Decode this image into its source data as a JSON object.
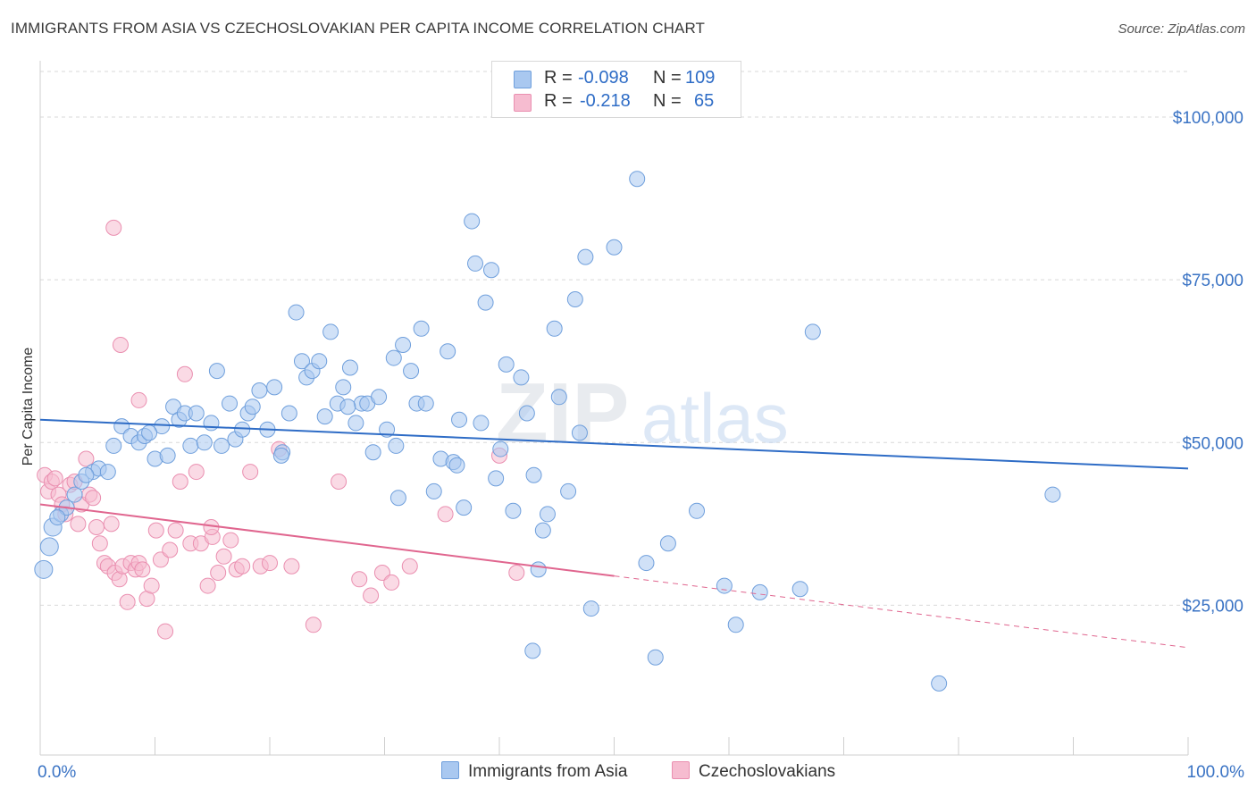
{
  "header": {
    "title": "IMMIGRANTS FROM ASIA VS CZECHOSLOVAKIAN PER CAPITA INCOME CORRELATION CHART",
    "source": "Source: ZipAtlas.com"
  },
  "watermark": {
    "zip": "ZIP",
    "atlas": "atlas"
  },
  "legend": {
    "rows": [
      {
        "r_label": "R =",
        "r_value": "-0.098",
        "n_label": "N =",
        "n_value": "109"
      },
      {
        "r_label": "R =",
        "r_value": "-0.218",
        "n_label": "N =",
        "n_value": "65"
      }
    ],
    "bottom": [
      "Immigrants from Asia",
      "Czechoslovakians"
    ]
  },
  "colors": {
    "blue_fill": "#a9c8f0",
    "blue_stroke": "#6f9fdc",
    "blue_line": "#2e6cc6",
    "pink_fill": "#f6bcd0",
    "pink_stroke": "#ea8fb0",
    "pink_line": "#e0668f",
    "grid": "#d9d9d9",
    "tick_label": "#3a73c4"
  },
  "chart_data": {
    "type": "scatter",
    "title": "IMMIGRANTS FROM ASIA VS CZECHOSLOVAKIAN PER CAPITA INCOME CORRELATION CHART",
    "xlabel": "",
    "ylabel": "Per Capita Income",
    "xlim": [
      0,
      100
    ],
    "ylim": [
      2000,
      107000
    ],
    "x_tick_labels": [
      "0.0%",
      "100.0%"
    ],
    "y_ticks": [
      25000,
      50000,
      75000,
      100000
    ],
    "y_tick_labels": [
      "$25,000",
      "$50,000",
      "$75,000",
      "$100,000"
    ],
    "grid": "horizontal dashed",
    "legend_position": "top-center",
    "series": [
      {
        "name": "Immigrants from Asia",
        "R": -0.098,
        "N": 109,
        "trend": {
          "x": [
            0,
            100
          ],
          "y": [
            53500,
            46000
          ]
        },
        "points": [
          [
            0.3,
            30500
          ],
          [
            0.8,
            34000
          ],
          [
            1.1,
            37000
          ],
          [
            1.8,
            39000
          ],
          [
            2.3,
            40000
          ],
          [
            3.0,
            42000
          ],
          [
            3.6,
            44000
          ],
          [
            4.6,
            45500
          ],
          [
            5.1,
            46000
          ],
          [
            5.9,
            45500
          ],
          [
            6.4,
            49500
          ],
          [
            7.1,
            52500
          ],
          [
            7.9,
            51000
          ],
          [
            8.6,
            50000
          ],
          [
            9.1,
            51000
          ],
          [
            10.0,
            47500
          ],
          [
            10.6,
            52500
          ],
          [
            11.1,
            48000
          ],
          [
            11.6,
            55500
          ],
          [
            12.1,
            53500
          ],
          [
            12.6,
            54500
          ],
          [
            13.1,
            49500
          ],
          [
            13.6,
            54500
          ],
          [
            14.3,
            50000
          ],
          [
            14.9,
            53000
          ],
          [
            15.4,
            61000
          ],
          [
            15.8,
            49500
          ],
          [
            16.5,
            56000
          ],
          [
            17.0,
            50500
          ],
          [
            17.6,
            52000
          ],
          [
            18.1,
            54500
          ],
          [
            18.5,
            55500
          ],
          [
            19.1,
            58000
          ],
          [
            19.8,
            52000
          ],
          [
            20.4,
            58500
          ],
          [
            21.1,
            48500
          ],
          [
            21.7,
            54500
          ],
          [
            22.3,
            70000
          ],
          [
            22.8,
            62500
          ],
          [
            23.2,
            60000
          ],
          [
            23.7,
            61000
          ],
          [
            24.3,
            62500
          ],
          [
            24.8,
            54000
          ],
          [
            25.3,
            67000
          ],
          [
            25.9,
            56000
          ],
          [
            26.4,
            58500
          ],
          [
            27.0,
            61500
          ],
          [
            27.5,
            53000
          ],
          [
            28.0,
            56000
          ],
          [
            28.5,
            56000
          ],
          [
            29.0,
            48500
          ],
          [
            29.5,
            57000
          ],
          [
            30.2,
            52000
          ],
          [
            30.8,
            63000
          ],
          [
            31.2,
            41500
          ],
          [
            31.6,
            65000
          ],
          [
            32.3,
            61000
          ],
          [
            32.8,
            56000
          ],
          [
            33.2,
            67500
          ],
          [
            33.6,
            56000
          ],
          [
            34.3,
            42500
          ],
          [
            34.9,
            47500
          ],
          [
            35.5,
            64000
          ],
          [
            36.0,
            47000
          ],
          [
            36.5,
            53500
          ],
          [
            36.9,
            40000
          ],
          [
            37.6,
            84000
          ],
          [
            37.9,
            77500
          ],
          [
            38.4,
            53000
          ],
          [
            38.8,
            71500
          ],
          [
            39.3,
            76500
          ],
          [
            39.7,
            44500
          ],
          [
            40.1,
            49000
          ],
          [
            40.6,
            62000
          ],
          [
            41.2,
            39500
          ],
          [
            41.9,
            60000
          ],
          [
            42.4,
            54500
          ],
          [
            42.9,
            18000
          ],
          [
            43.4,
            30500
          ],
          [
            43.8,
            36500
          ],
          [
            44.2,
            39000
          ],
          [
            44.8,
            67500
          ],
          [
            45.2,
            57000
          ],
          [
            46.0,
            42500
          ],
          [
            46.6,
            72000
          ],
          [
            47.0,
            51500
          ],
          [
            47.5,
            78500
          ],
          [
            48.0,
            24500
          ],
          [
            50.0,
            80000
          ],
          [
            52.0,
            90500
          ],
          [
            52.8,
            31500
          ],
          [
            53.6,
            17000
          ],
          [
            54.7,
            34500
          ],
          [
            57.2,
            39500
          ],
          [
            59.6,
            28000
          ],
          [
            60.6,
            22000
          ],
          [
            62.7,
            27000
          ],
          [
            66.2,
            27500
          ],
          [
            67.3,
            67000
          ],
          [
            78.3,
            13000
          ],
          [
            88.2,
            42000
          ],
          [
            1.5,
            38500
          ],
          [
            4.0,
            45000
          ],
          [
            9.5,
            51500
          ],
          [
            26.8,
            55500
          ],
          [
            31.0,
            49500
          ],
          [
            36.3,
            46500
          ],
          [
            43.0,
            45000
          ],
          [
            21.0,
            48000
          ]
        ]
      },
      {
        "name": "Czechoslovakians",
        "R": -0.218,
        "N": 65,
        "trend": {
          "x": [
            0,
            50
          ],
          "y": [
            40500,
            29500
          ]
        },
        "trend_dashed": {
          "x": [
            50,
            100
          ],
          "y": [
            29500,
            18500
          ]
        },
        "points": [
          [
            0.4,
            45000
          ],
          [
            0.7,
            42500
          ],
          [
            1.0,
            44000
          ],
          [
            1.3,
            44500
          ],
          [
            1.6,
            42000
          ],
          [
            1.9,
            40500
          ],
          [
            2.2,
            39000
          ],
          [
            2.6,
            43500
          ],
          [
            3.0,
            44000
          ],
          [
            3.3,
            37500
          ],
          [
            3.6,
            40500
          ],
          [
            4.0,
            47500
          ],
          [
            4.3,
            42000
          ],
          [
            4.6,
            41500
          ],
          [
            4.9,
            37000
          ],
          [
            5.2,
            34500
          ],
          [
            5.6,
            31500
          ],
          [
            5.9,
            31000
          ],
          [
            6.2,
            37500
          ],
          [
            6.5,
            30000
          ],
          [
            6.9,
            29000
          ],
          [
            7.2,
            31000
          ],
          [
            7.6,
            25500
          ],
          [
            7.9,
            31500
          ],
          [
            8.3,
            30500
          ],
          [
            8.6,
            31500
          ],
          [
            8.9,
            30500
          ],
          [
            9.3,
            26000
          ],
          [
            9.7,
            28000
          ],
          [
            10.1,
            36500
          ],
          [
            10.5,
            32000
          ],
          [
            10.9,
            21000
          ],
          [
            11.3,
            33500
          ],
          [
            11.8,
            36500
          ],
          [
            12.2,
            44000
          ],
          [
            12.6,
            60500
          ],
          [
            13.1,
            34500
          ],
          [
            13.6,
            45500
          ],
          [
            14.0,
            34500
          ],
          [
            14.6,
            28000
          ],
          [
            15.0,
            35500
          ],
          [
            15.5,
            30000
          ],
          [
            16.0,
            32500
          ],
          [
            16.6,
            35000
          ],
          [
            17.1,
            30500
          ],
          [
            17.6,
            31000
          ],
          [
            18.3,
            45500
          ],
          [
            19.2,
            31000
          ],
          [
            20.0,
            31500
          ],
          [
            20.8,
            49000
          ],
          [
            21.9,
            31000
          ],
          [
            23.8,
            22000
          ],
          [
            26.0,
            44000
          ],
          [
            27.8,
            29000
          ],
          [
            28.8,
            26500
          ],
          [
            29.8,
            30000
          ],
          [
            30.6,
            28500
          ],
          [
            32.2,
            31000
          ],
          [
            35.3,
            39000
          ],
          [
            40.0,
            48000
          ],
          [
            41.5,
            30000
          ],
          [
            6.4,
            83000
          ],
          [
            7.0,
            65000
          ],
          [
            8.6,
            56500
          ],
          [
            14.9,
            37000
          ]
        ]
      }
    ]
  }
}
